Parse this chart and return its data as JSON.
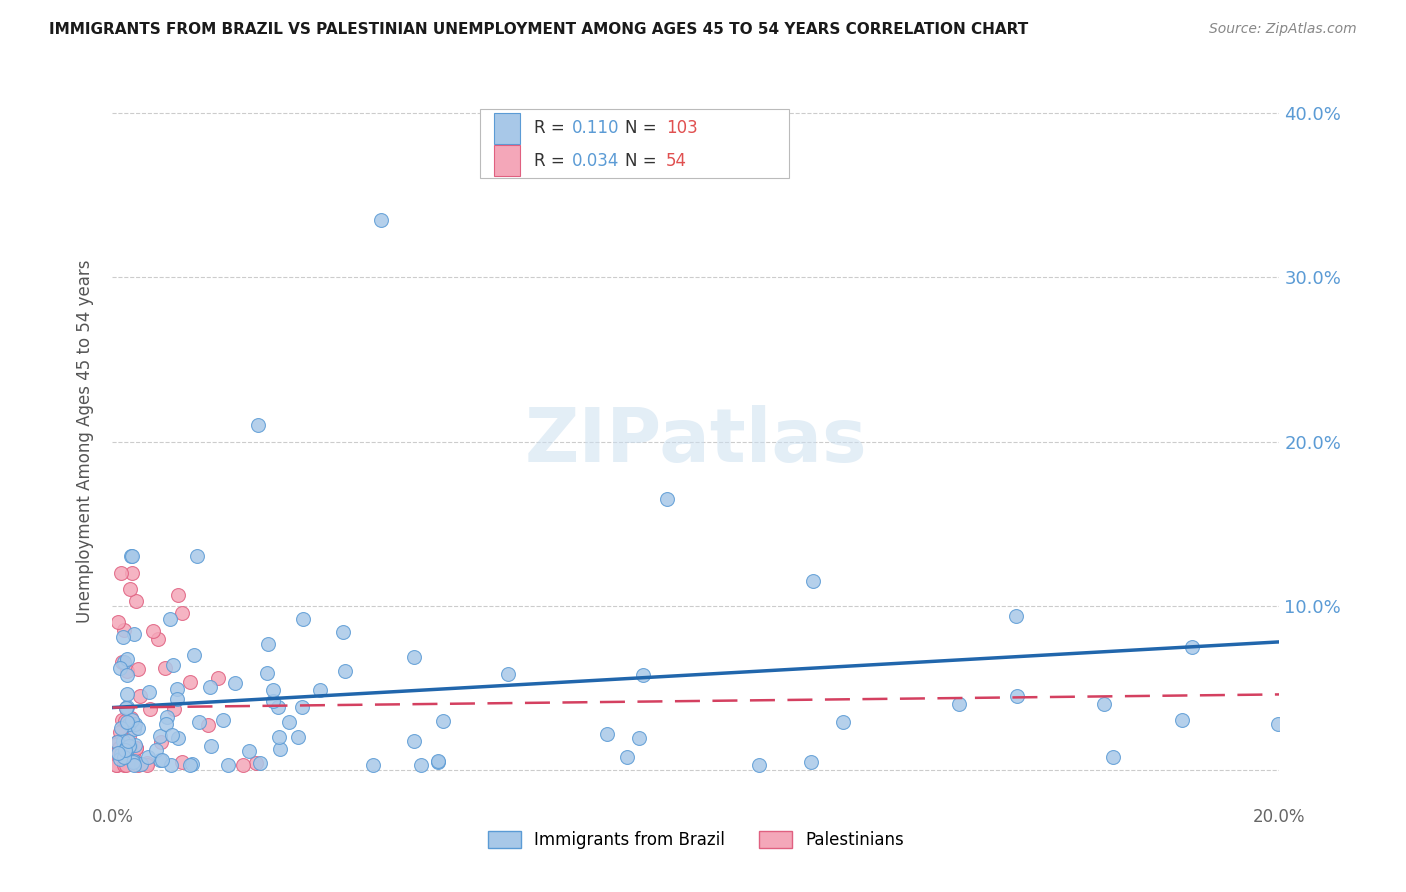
{
  "title": "IMMIGRANTS FROM BRAZIL VS PALESTINIAN UNEMPLOYMENT AMONG AGES 45 TO 54 YEARS CORRELATION CHART",
  "source": "Source: ZipAtlas.com",
  "ylabel": "Unemployment Among Ages 45 to 54 years",
  "xlim": [
    0.0,
    0.2
  ],
  "ylim": [
    -0.02,
    0.42
  ],
  "brazil_color": "#a8c8e8",
  "brazil_edge": "#5b9bd5",
  "palestinian_color": "#f4a7b9",
  "palestinian_edge": "#e06080",
  "brazil_R": 0.11,
  "brazil_N": 103,
  "palestinian_R": 0.034,
  "palestinian_N": 54,
  "brazil_line_color": "#2166ac",
  "pal_line_color": "#d44060",
  "right_tick_color": "#5b9bd5",
  "watermark": "ZIPatlas",
  "title_fontsize": 11,
  "source_fontsize": 10
}
